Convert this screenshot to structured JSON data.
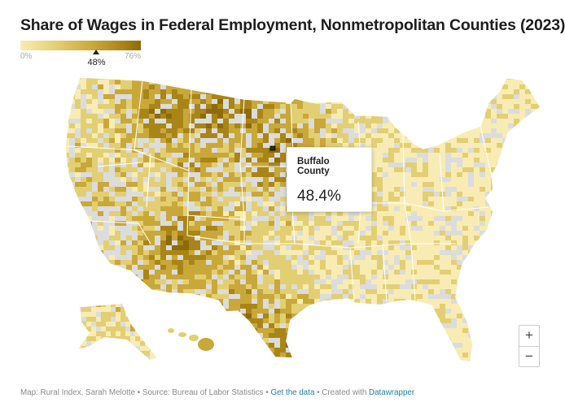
{
  "title": "Share of Wages in Federal Employment, Nonmetropolitan Counties (2023)",
  "legend": {
    "min_label": "0%",
    "max_label": "76%",
    "min_value": 0,
    "max_value": 76,
    "marker_value": 48,
    "marker_label": "48%",
    "colors": [
      "#f8ecb4",
      "#e3cf73",
      "#c9a83a",
      "#a98518",
      "#8c6b08"
    ]
  },
  "map": {
    "no_data_color": "#dcdcdc",
    "state_border_color": "#ffffff",
    "highlighted_county": "Buffalo County"
  },
  "tooltip": {
    "name": "Buffalo County",
    "value": "48.4%"
  },
  "zoom": {
    "in_label": "+",
    "out_label": "−"
  },
  "footer": {
    "credit": "Map: Rural Index, Sarah Melotte • Source: Bureau of Labor Statistics •",
    "get_data": "Get the data",
    "sep": "• Created with",
    "tool": "Datawrapper"
  }
}
